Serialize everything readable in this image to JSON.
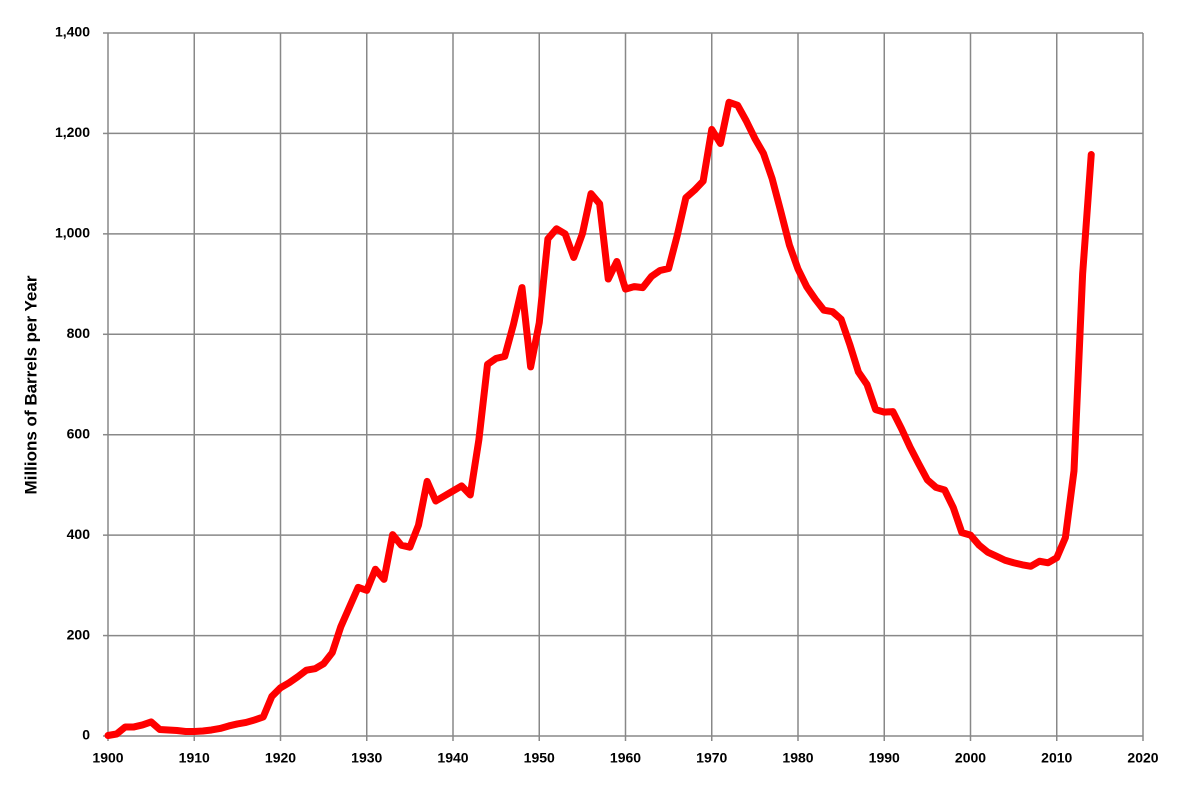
{
  "chart_data": {
    "type": "line",
    "y_label": "Millions of Barrels per Year",
    "x": [
      1900,
      1901,
      1902,
      1903,
      1904,
      1905,
      1906,
      1907,
      1908,
      1909,
      1910,
      1911,
      1912,
      1913,
      1914,
      1915,
      1916,
      1917,
      1918,
      1919,
      1920,
      1921,
      1922,
      1923,
      1924,
      1925,
      1926,
      1927,
      1928,
      1929,
      1930,
      1931,
      1932,
      1933,
      1934,
      1935,
      1936,
      1937,
      1938,
      1939,
      1940,
      1941,
      1942,
      1943,
      1944,
      1945,
      1946,
      1947,
      1948,
      1949,
      1950,
      1951,
      1952,
      1953,
      1954,
      1955,
      1956,
      1957,
      1958,
      1959,
      1960,
      1961,
      1962,
      1963,
      1964,
      1965,
      1966,
      1967,
      1968,
      1969,
      1970,
      1971,
      1972,
      1973,
      1974,
      1975,
      1976,
      1977,
      1978,
      1979,
      1980,
      1981,
      1982,
      1983,
      1984,
      1985,
      1986,
      1987,
      1988,
      1989,
      1990,
      1991,
      1992,
      1993,
      1994,
      1995,
      1996,
      1997,
      1998,
      1999,
      2000,
      2001,
      2002,
      2003,
      2004,
      2005,
      2006,
      2007,
      2008,
      2009,
      2010,
      2011,
      2012,
      2013,
      2014
    ],
    "series": [
      {
        "color": "#ff0000",
        "values": [
          1,
          4,
          18,
          18,
          22,
          28,
          13,
          12,
          11,
          9,
          9,
          10,
          12,
          15,
          20,
          24,
          27,
          32,
          38,
          79,
          96,
          106,
          118,
          131,
          134,
          144,
          166,
          218,
          257,
          296,
          290,
          332,
          312,
          401,
          380,
          376,
          420,
          507,
          468,
          478,
          488,
          498,
          480,
          590,
          740,
          752,
          756,
          819,
          893,
          735,
          823,
          990,
          1010,
          1000,
          953,
          1000,
          1080,
          1060,
          910,
          945,
          890,
          895,
          893,
          915,
          927,
          931,
          997,
          1072,
          1087,
          1105,
          1208,
          1180,
          1262,
          1256,
          1225,
          1190,
          1160,
          1110,
          1045,
          978,
          930,
          895,
          870,
          848,
          845,
          830,
          780,
          725,
          700,
          650,
          645,
          646,
          612,
          575,
          542,
          510,
          495,
          490,
          455,
          405,
          400,
          380,
          366,
          358,
          350,
          345,
          341,
          338,
          348,
          345,
          355,
          395,
          528,
          920,
          1158
        ]
      }
    ],
    "xlim": [
      1900,
      2020
    ],
    "xticks": [
      1900,
      1910,
      1920,
      1930,
      1940,
      1950,
      1960,
      1970,
      1980,
      1990,
      2000,
      2010,
      2020
    ],
    "ylim": [
      0,
      1400
    ],
    "yticks": [
      0,
      200,
      400,
      600,
      800,
      {
        "value": 1000,
        "label": "1,000"
      },
      {
        "value": 1200,
        "label": "1,200"
      },
      {
        "value": 1400,
        "label": "1,400"
      }
    ],
    "grid": true
  }
}
